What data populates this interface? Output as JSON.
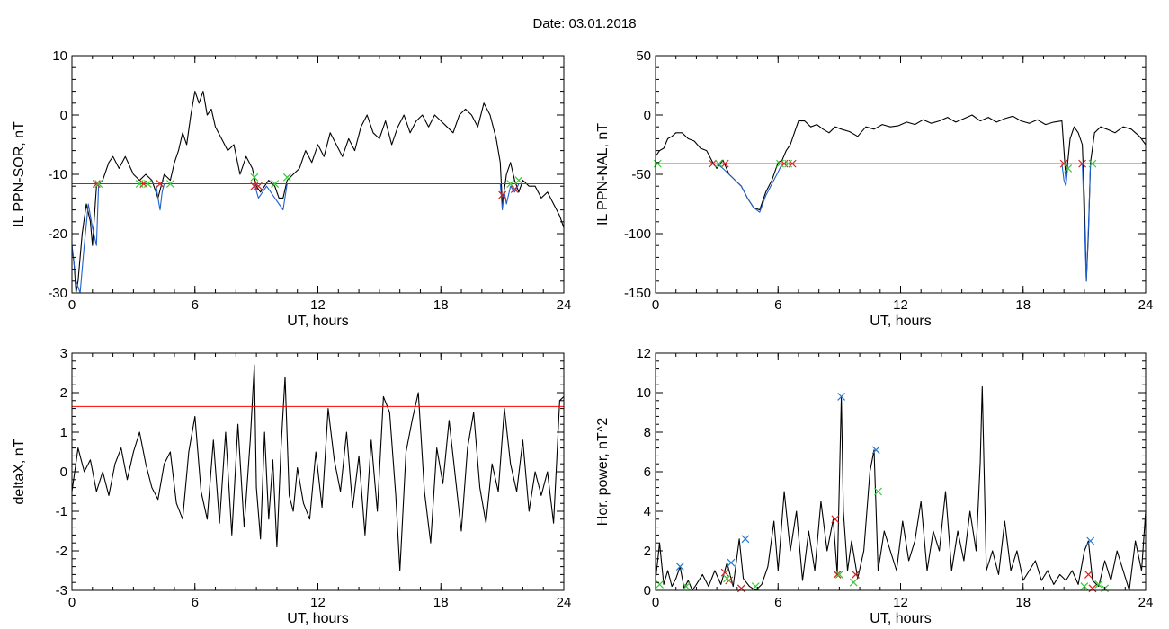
{
  "page": {
    "title": "Date:  03.01.2018"
  },
  "chart_data": [
    {
      "id": "panel-ppn-sor",
      "type": "line",
      "title": "",
      "xlabel": "UT, hours",
      "ylabel": "IL PPN-SOR, nT",
      "xlim": [
        0,
        24
      ],
      "ylim": [
        -30,
        10
      ],
      "xticks": [
        0,
        6,
        12,
        18,
        24
      ],
      "yticks": [
        -30,
        -20,
        -10,
        0,
        10
      ],
      "threshold": -11.6,
      "series": [
        {
          "color": "#000000",
          "x": [
            0.0,
            0.1,
            0.2,
            0.3,
            0.5,
            0.7,
            0.9,
            1.0,
            1.2,
            1.5,
            1.8,
            2.0,
            2.3,
            2.6,
            3.0,
            3.3,
            3.6,
            3.9,
            4.2,
            4.5,
            4.8,
            5.0,
            5.2,
            5.4,
            5.6,
            5.8,
            6.0,
            6.2,
            6.4,
            6.6,
            6.8,
            7.0,
            7.3,
            7.6,
            7.9,
            8.2,
            8.5,
            8.8,
            9.0,
            9.2,
            9.4,
            9.6,
            9.9,
            10.1,
            10.3,
            10.5,
            10.8,
            11.1,
            11.4,
            11.7,
            12.0,
            12.3,
            12.6,
            12.9,
            13.2,
            13.5,
            13.8,
            14.1,
            14.4,
            14.7,
            15.0,
            15.3,
            15.6,
            15.9,
            16.2,
            16.5,
            16.8,
            17.1,
            17.4,
            17.7,
            18.0,
            18.3,
            18.6,
            18.9,
            19.2,
            19.5,
            19.8,
            20.1,
            20.4,
            20.7,
            20.9,
            21.0,
            21.2,
            21.4,
            21.6,
            21.8,
            22.0,
            22.3,
            22.6,
            22.9,
            23.2,
            23.5,
            23.8,
            24.0
          ],
          "y": [
            -22,
            -25,
            -30,
            -28,
            -20,
            -15,
            -18,
            -22,
            -12,
            -11,
            -8,
            -7,
            -9,
            -7,
            -10,
            -11,
            -10,
            -11,
            -14,
            -10,
            -11,
            -8,
            -6,
            -3,
            -5,
            0,
            4,
            2,
            4,
            0,
            1,
            -2,
            -4,
            -6,
            -5,
            -10,
            -7,
            -9,
            -12,
            -13,
            -12,
            -11,
            -12,
            -14,
            -14,
            -11,
            -10,
            -9,
            -6,
            -8,
            -5,
            -7,
            -3,
            -5,
            -7,
            -4,
            -6,
            -2,
            0,
            -3,
            -4,
            -1,
            -5,
            -2,
            0,
            -3,
            -1,
            0,
            -2,
            0,
            -1,
            -2,
            -3,
            0,
            1,
            0,
            -2,
            2,
            0,
            -4,
            -8,
            -15,
            -10,
            -8,
            -11,
            -13,
            -11,
            -12,
            -12,
            -14,
            -13,
            -15,
            -17,
            -19
          ]
        },
        {
          "color": "#1f5fcf",
          "x": [
            0.0,
            0.2,
            0.4,
            0.6,
            0.8,
            1.0,
            1.2,
            1.3
          ],
          "y": [
            -22,
            -28,
            -30,
            -22,
            -15,
            -19,
            -22,
            -12
          ]
        },
        {
          "color": "#1f5fcf",
          "x": [
            4.1,
            4.2,
            4.3,
            4.4,
            4.5
          ],
          "y": [
            -11.6,
            -14,
            -16,
            -13,
            -11.6
          ]
        },
        {
          "color": "#1f5fcf",
          "x": [
            8.9,
            9.1,
            9.3,
            9.5,
            9.7,
            9.9,
            10.1,
            10.3,
            10.5
          ],
          "y": [
            -11.6,
            -14,
            -13,
            -12,
            -13,
            -14,
            -15,
            -16,
            -11.6
          ]
        },
        {
          "color": "#1f5fcf",
          "x": [
            20.9,
            21.0,
            21.1,
            21.2,
            21.4,
            21.6,
            21.8
          ],
          "y": [
            -11.6,
            -16,
            -13,
            -15,
            -12,
            -13,
            -11.6
          ]
        }
      ],
      "markers": {
        "red": {
          "x": [
            1.2,
            3.5,
            4.3,
            8.9,
            9.1,
            21.0,
            21.6
          ],
          "y": [
            -11.6,
            -11.6,
            -11.6,
            -12.0,
            -12.0,
            -13.5,
            -12.5
          ]
        },
        "green": {
          "x": [
            1.3,
            3.3,
            3.7,
            4.8,
            8.9,
            9.9,
            10.5,
            21.4,
            21.8
          ],
          "y": [
            -11.6,
            -11.6,
            -11.6,
            -11.6,
            -10.5,
            -11.6,
            -10.5,
            -11.6,
            -11.0
          ]
        }
      }
    },
    {
      "id": "panel-ppn-nal",
      "type": "line",
      "title": "",
      "xlabel": "UT, hours",
      "ylabel": "IL PPN-NAL, nT",
      "xlim": [
        0,
        24
      ],
      "ylim": [
        -150,
        50
      ],
      "xticks": [
        0,
        6,
        12,
        18,
        24
      ],
      "yticks": [
        -150,
        -100,
        -50,
        0,
        50
      ],
      "threshold": -41,
      "series": [
        {
          "color": "#000000",
          "x": [
            0.0,
            0.2,
            0.4,
            0.6,
            0.8,
            1.0,
            1.3,
            1.6,
            1.9,
            2.2,
            2.5,
            2.8,
            3.0,
            3.3,
            3.6,
            3.9,
            4.2,
            4.5,
            4.8,
            5.1,
            5.4,
            5.7,
            6.0,
            6.2,
            6.4,
            6.6,
            6.8,
            7.0,
            7.3,
            7.6,
            7.9,
            8.2,
            8.5,
            8.8,
            9.1,
            9.5,
            9.9,
            10.3,
            10.7,
            11.1,
            11.5,
            11.9,
            12.3,
            12.7,
            13.1,
            13.5,
            13.9,
            14.3,
            14.7,
            15.1,
            15.5,
            15.9,
            16.3,
            16.7,
            17.1,
            17.5,
            17.9,
            18.3,
            18.7,
            19.1,
            19.5,
            19.9,
            20.0,
            20.1,
            20.3,
            20.5,
            20.7,
            20.9,
            21.0,
            21.1,
            21.2,
            21.3,
            21.5,
            21.8,
            22.1,
            22.5,
            22.9,
            23.3,
            23.7,
            24.0
          ],
          "y": [
            -35,
            -30,
            -28,
            -20,
            -18,
            -15,
            -15,
            -20,
            -22,
            -28,
            -30,
            -40,
            -45,
            -38,
            -50,
            -55,
            -60,
            -70,
            -78,
            -80,
            -65,
            -55,
            -40,
            -38,
            -30,
            -25,
            -15,
            -5,
            -5,
            -10,
            -8,
            -12,
            -15,
            -10,
            -12,
            -14,
            -18,
            -10,
            -12,
            -8,
            -10,
            -9,
            -6,
            -8,
            -4,
            -7,
            -5,
            -2,
            -6,
            -3,
            0,
            -5,
            -2,
            -6,
            -3,
            -1,
            -5,
            -7,
            -4,
            -8,
            -6,
            -5,
            -30,
            -55,
            -20,
            -10,
            -15,
            -25,
            -70,
            -140,
            -100,
            -40,
            -15,
            -10,
            -12,
            -15,
            -10,
            -12,
            -18,
            -25
          ]
        },
        {
          "color": "#1f5fcf",
          "x": [
            3.0,
            3.3,
            3.6,
            3.9,
            4.2,
            4.5,
            4.8,
            5.1,
            5.4,
            5.7,
            6.0,
            6.2
          ],
          "y": [
            -41,
            -45,
            -50,
            -55,
            -60,
            -70,
            -78,
            -82,
            -68,
            -58,
            -48,
            -41
          ]
        },
        {
          "color": "#1f5fcf",
          "x": [
            19.9,
            20.0,
            20.1,
            20.2
          ],
          "y": [
            -41,
            -55,
            -60,
            -41
          ]
        },
        {
          "color": "#1f5fcf",
          "x": [
            20.9,
            21.0,
            21.1,
            21.2,
            21.3
          ],
          "y": [
            -41,
            -90,
            -140,
            -95,
            -41
          ]
        }
      ],
      "markers": {
        "red": {
          "x": [
            2.8,
            3.4,
            6.3,
            6.7,
            20.0,
            20.9
          ],
          "y": [
            -41,
            -41,
            -41,
            -41,
            -41,
            -41
          ]
        },
        "green": {
          "x": [
            0.1,
            3.1,
            6.1,
            6.5,
            20.2,
            21.4
          ],
          "y": [
            -41,
            -41,
            -41,
            -41,
            -45,
            -41
          ]
        }
      }
    },
    {
      "id": "panel-deltax",
      "type": "line",
      "title": "",
      "xlabel": "UT, hours",
      "ylabel": "deltaX, nT",
      "xlim": [
        0,
        24
      ],
      "ylim": [
        -3,
        3
      ],
      "xticks": [
        0,
        6,
        12,
        18,
        24
      ],
      "yticks": [
        -3,
        -2,
        -1,
        0,
        1,
        2,
        3
      ],
      "threshold": 1.65,
      "series": [
        {
          "color": "#000000",
          "x": [
            0.0,
            0.3,
            0.6,
            0.9,
            1.2,
            1.5,
            1.8,
            2.1,
            2.4,
            2.7,
            3.0,
            3.3,
            3.6,
            3.9,
            4.2,
            4.5,
            4.8,
            5.1,
            5.4,
            5.7,
            6.0,
            6.3,
            6.6,
            6.9,
            7.2,
            7.5,
            7.8,
            8.1,
            8.4,
            8.7,
            8.9,
            9.0,
            9.2,
            9.4,
            9.6,
            9.8,
            10.0,
            10.2,
            10.4,
            10.6,
            10.8,
            11.0,
            11.3,
            11.6,
            11.9,
            12.2,
            12.5,
            12.8,
            13.1,
            13.4,
            13.7,
            14.0,
            14.3,
            14.6,
            14.9,
            15.2,
            15.5,
            15.8,
            16.0,
            16.3,
            16.6,
            16.9,
            17.2,
            17.5,
            17.8,
            18.1,
            18.4,
            18.7,
            19.0,
            19.3,
            19.6,
            19.9,
            20.2,
            20.5,
            20.8,
            21.1,
            21.4,
            21.7,
            22.0,
            22.3,
            22.6,
            22.9,
            23.2,
            23.5,
            23.8,
            24.0
          ],
          "y": [
            -0.5,
            0.6,
            0.0,
            0.3,
            -0.5,
            0.0,
            -0.6,
            0.2,
            0.6,
            -0.2,
            0.5,
            1.0,
            0.2,
            -0.4,
            -0.7,
            0.2,
            0.5,
            -0.8,
            -1.2,
            0.5,
            1.4,
            -0.5,
            -1.2,
            0.8,
            -1.3,
            1.0,
            -1.6,
            1.2,
            -1.4,
            0.8,
            2.7,
            -0.4,
            -1.7,
            1.0,
            -1.2,
            0.3,
            -1.9,
            0.6,
            2.4,
            -0.6,
            -1.0,
            0.1,
            -0.8,
            -1.2,
            0.5,
            -0.9,
            1.6,
            0.3,
            -0.5,
            1.0,
            -0.9,
            0.4,
            -1.6,
            0.8,
            -1.0,
            1.9,
            1.5,
            -0.6,
            -2.5,
            0.5,
            1.3,
            2.0,
            -0.5,
            -1.8,
            0.6,
            -0.3,
            1.3,
            -0.1,
            -1.5,
            0.6,
            1.5,
            -0.4,
            -1.3,
            0.2,
            -0.5,
            1.6,
            0.2,
            -0.5,
            0.8,
            -1.0,
            0.0,
            -0.6,
            0.0,
            -1.3,
            1.8,
            1.9
          ]
        }
      ],
      "markers": {}
    },
    {
      "id": "panel-hor-power",
      "type": "line",
      "title": "",
      "xlabel": "UT, hours",
      "ylabel": "Hor. power, nT^2",
      "xlim": [
        0,
        24
      ],
      "ylim": [
        0,
        12
      ],
      "xticks": [
        0,
        6,
        12,
        18,
        24
      ],
      "yticks": [
        0,
        2,
        4,
        6,
        8,
        10,
        12
      ],
      "threshold": null,
      "series": [
        {
          "color": "#000000",
          "x": [
            0.0,
            0.2,
            0.4,
            0.6,
            0.8,
            1.0,
            1.2,
            1.4,
            1.6,
            1.8,
            2.0,
            2.3,
            2.6,
            2.9,
            3.2,
            3.5,
            3.8,
            4.1,
            4.3,
            4.6,
            4.9,
            5.2,
            5.5,
            5.8,
            6.0,
            6.3,
            6.6,
            6.9,
            7.2,
            7.5,
            7.8,
            8.1,
            8.4,
            8.7,
            8.9,
            9.1,
            9.2,
            9.4,
            9.6,
            9.9,
            10.2,
            10.5,
            10.7,
            10.9,
            11.2,
            11.5,
            11.8,
            12.1,
            12.4,
            12.7,
            13.0,
            13.3,
            13.6,
            13.9,
            14.2,
            14.5,
            14.8,
            15.1,
            15.4,
            15.7,
            15.9,
            16.0,
            16.2,
            16.5,
            16.8,
            17.1,
            17.4,
            17.7,
            18.0,
            18.3,
            18.6,
            18.9,
            19.2,
            19.5,
            19.8,
            20.1,
            20.4,
            20.7,
            21.0,
            21.2,
            21.4,
            21.7,
            22.0,
            22.3,
            22.6,
            22.9,
            23.2,
            23.5,
            23.8,
            24.0
          ],
          "y": [
            0.5,
            2.4,
            0.3,
            1.0,
            0.2,
            0.6,
            1.2,
            0.1,
            0.5,
            0.0,
            0.3,
            0.8,
            0.2,
            1.0,
            0.3,
            1.4,
            0.2,
            2.6,
            0.6,
            0.2,
            0.0,
            0.3,
            1.2,
            3.5,
            1.0,
            5.0,
            2.0,
            4.0,
            0.5,
            3.0,
            1.0,
            4.5,
            2.0,
            3.6,
            0.8,
            9.8,
            4.0,
            1.0,
            2.5,
            0.6,
            2.0,
            6.0,
            7.1,
            1.0,
            3.0,
            2.0,
            1.0,
            3.5,
            1.5,
            2.5,
            4.5,
            1.0,
            3.0,
            2.0,
            5.0,
            1.0,
            3.0,
            1.5,
            4.0,
            2.0,
            6.5,
            10.3,
            1.0,
            2.0,
            0.8,
            3.5,
            1.0,
            2.0,
            0.5,
            1.0,
            1.5,
            0.5,
            1.0,
            0.3,
            0.8,
            0.5,
            1.0,
            0.3,
            2.0,
            2.5,
            0.5,
            0.2,
            1.5,
            0.5,
            2.0,
            1.0,
            0.0,
            2.5,
            1.0,
            4.0
          ]
        }
      ],
      "markers": {
        "blue": {
          "x": [
            1.2,
            3.7,
            4.4,
            9.1,
            10.8,
            21.3
          ],
          "y": [
            1.2,
            1.4,
            2.6,
            9.8,
            7.1,
            2.5
          ]
        },
        "red": {
          "x": [
            3.4,
            3.6,
            4.2,
            8.8,
            8.9,
            9.8,
            21.2,
            21.4
          ],
          "y": [
            0.9,
            0.5,
            0.1,
            3.6,
            0.8,
            0.8,
            0.8,
            0.1
          ]
        },
        "green": {
          "x": [
            0.2,
            1.5,
            3.5,
            4.9,
            9.0,
            9.7,
            10.9,
            21.0,
            21.7,
            22.0
          ],
          "y": [
            0.3,
            0.2,
            0.6,
            0.2,
            0.8,
            0.4,
            5.0,
            0.2,
            0.3,
            0.1
          ]
        }
      }
    }
  ],
  "colors": {
    "threshold": "#ff0000",
    "marker_red": "#d62020",
    "marker_green": "#33cc33",
    "marker_blue": "#1f7bd6",
    "highlight": "#1f5fcf"
  }
}
